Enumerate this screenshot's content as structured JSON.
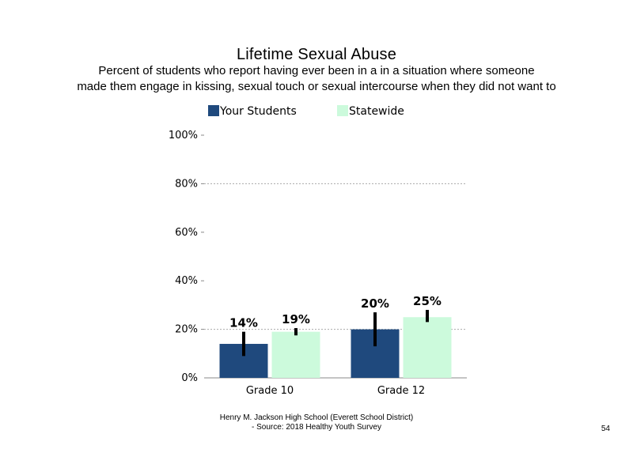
{
  "chart_data": {
    "type": "bar",
    "title": "Lifetime Sexual Abuse",
    "subtitle_lines": [
      "Percent of students who report having ever been in a in a situation where someone",
      "made them engage in kissing, sexual touch or sexual intercourse when they did not want to"
    ],
    "categories": [
      "Grade 10",
      "Grade 12"
    ],
    "series": [
      {
        "name": "Your Students",
        "color": "#1f497d",
        "values": [
          14,
          20
        ],
        "labels": [
          "14%",
          "20%"
        ],
        "ci_low": [
          9,
          13
        ],
        "ci_high": [
          19,
          27
        ]
      },
      {
        "name": "Statewide",
        "color": "#ccfadc",
        "values": [
          19,
          25
        ],
        "labels": [
          "19%",
          "25%"
        ],
        "ci_low": [
          17.5,
          23
        ],
        "ci_high": [
          20.5,
          28
        ]
      }
    ],
    "yticks": [
      "0%",
      "20%",
      "40%",
      "60%",
      "80%",
      "100%"
    ],
    "ylim": [
      0,
      100
    ],
    "grid": "dotted at 20% and 80%",
    "legend": "top"
  },
  "footer": {
    "line1": "Henry M. Jackson High School (Everett School District)",
    "line2": "- Source: 2018 Healthy Youth Survey"
  },
  "page_number": "54"
}
